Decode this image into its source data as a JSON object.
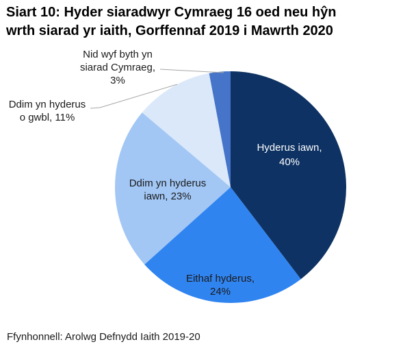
{
  "header": {
    "line1": "Siart 10: Hyder siaradwyr Cymraeg 16 oed neu hŷn",
    "line2": "wrth siarad yr iaith, Gorffennaf 2019 i Mawrth 2020"
  },
  "source": "Ffynhonnell: Arolwg Defnydd Iaith 2019-20",
  "chart_data": {
    "type": "pie",
    "title": "Siart 10: Hyder siaradwyr Cymraeg 16 oed neu hŷn wrth siarad yr iaith, Gorffennaf 2019 i Mawrth 2020",
    "unit": "%",
    "start_angle_deg": 0,
    "direction": "clockwise",
    "legend_position": "none",
    "labels": [
      "Hyderus iawn",
      "Eithaf hyderus",
      "Ddim yn hyderus iawn",
      "Ddim yn hyderus o gwbl",
      "Nid wyf byth yn siarad Cymraeg"
    ],
    "values": [
      40,
      24,
      23,
      11,
      3
    ],
    "leader_line_color": "#a6a6a6",
    "slices": [
      {
        "label": "Hyderus iawn",
        "value_pct": 40,
        "color": "#0e3263",
        "text_color": "#ffffff",
        "label_position": "inside",
        "display_lines": [
          "Hyderus iawn,",
          "40%"
        ]
      },
      {
        "label": "Eithaf hyderus",
        "value_pct": 24,
        "color": "#3084f0",
        "text_color": "#1a1a1a",
        "label_position": "inside",
        "display_lines": [
          "Eithaf hyderus,",
          "24%"
        ]
      },
      {
        "label": "Ddim yn hyderus iawn",
        "value_pct": 23,
        "color": "#a2c7f5",
        "text_color": "#1a1a1a",
        "label_position": "inside",
        "display_lines": [
          "Ddim yn hyderus",
          "iawn, 23%"
        ]
      },
      {
        "label": "Ddim yn hyderus o gwbl",
        "value_pct": 11,
        "color": "#dae8fa",
        "text_color": "#1a1a1a",
        "label_position": "outside-left",
        "display_lines": [
          "Ddim yn hyderus",
          "o gwbl, 11%"
        ]
      },
      {
        "label": "Nid wyf byth yn siarad Cymraeg",
        "value_pct": 3,
        "color": "#4574c8",
        "text_color": "#1a1a1a",
        "label_position": "outside-top",
        "display_lines": [
          "Nid wyf byth yn",
          "siarad Cymraeg,",
          "3%"
        ]
      }
    ]
  }
}
